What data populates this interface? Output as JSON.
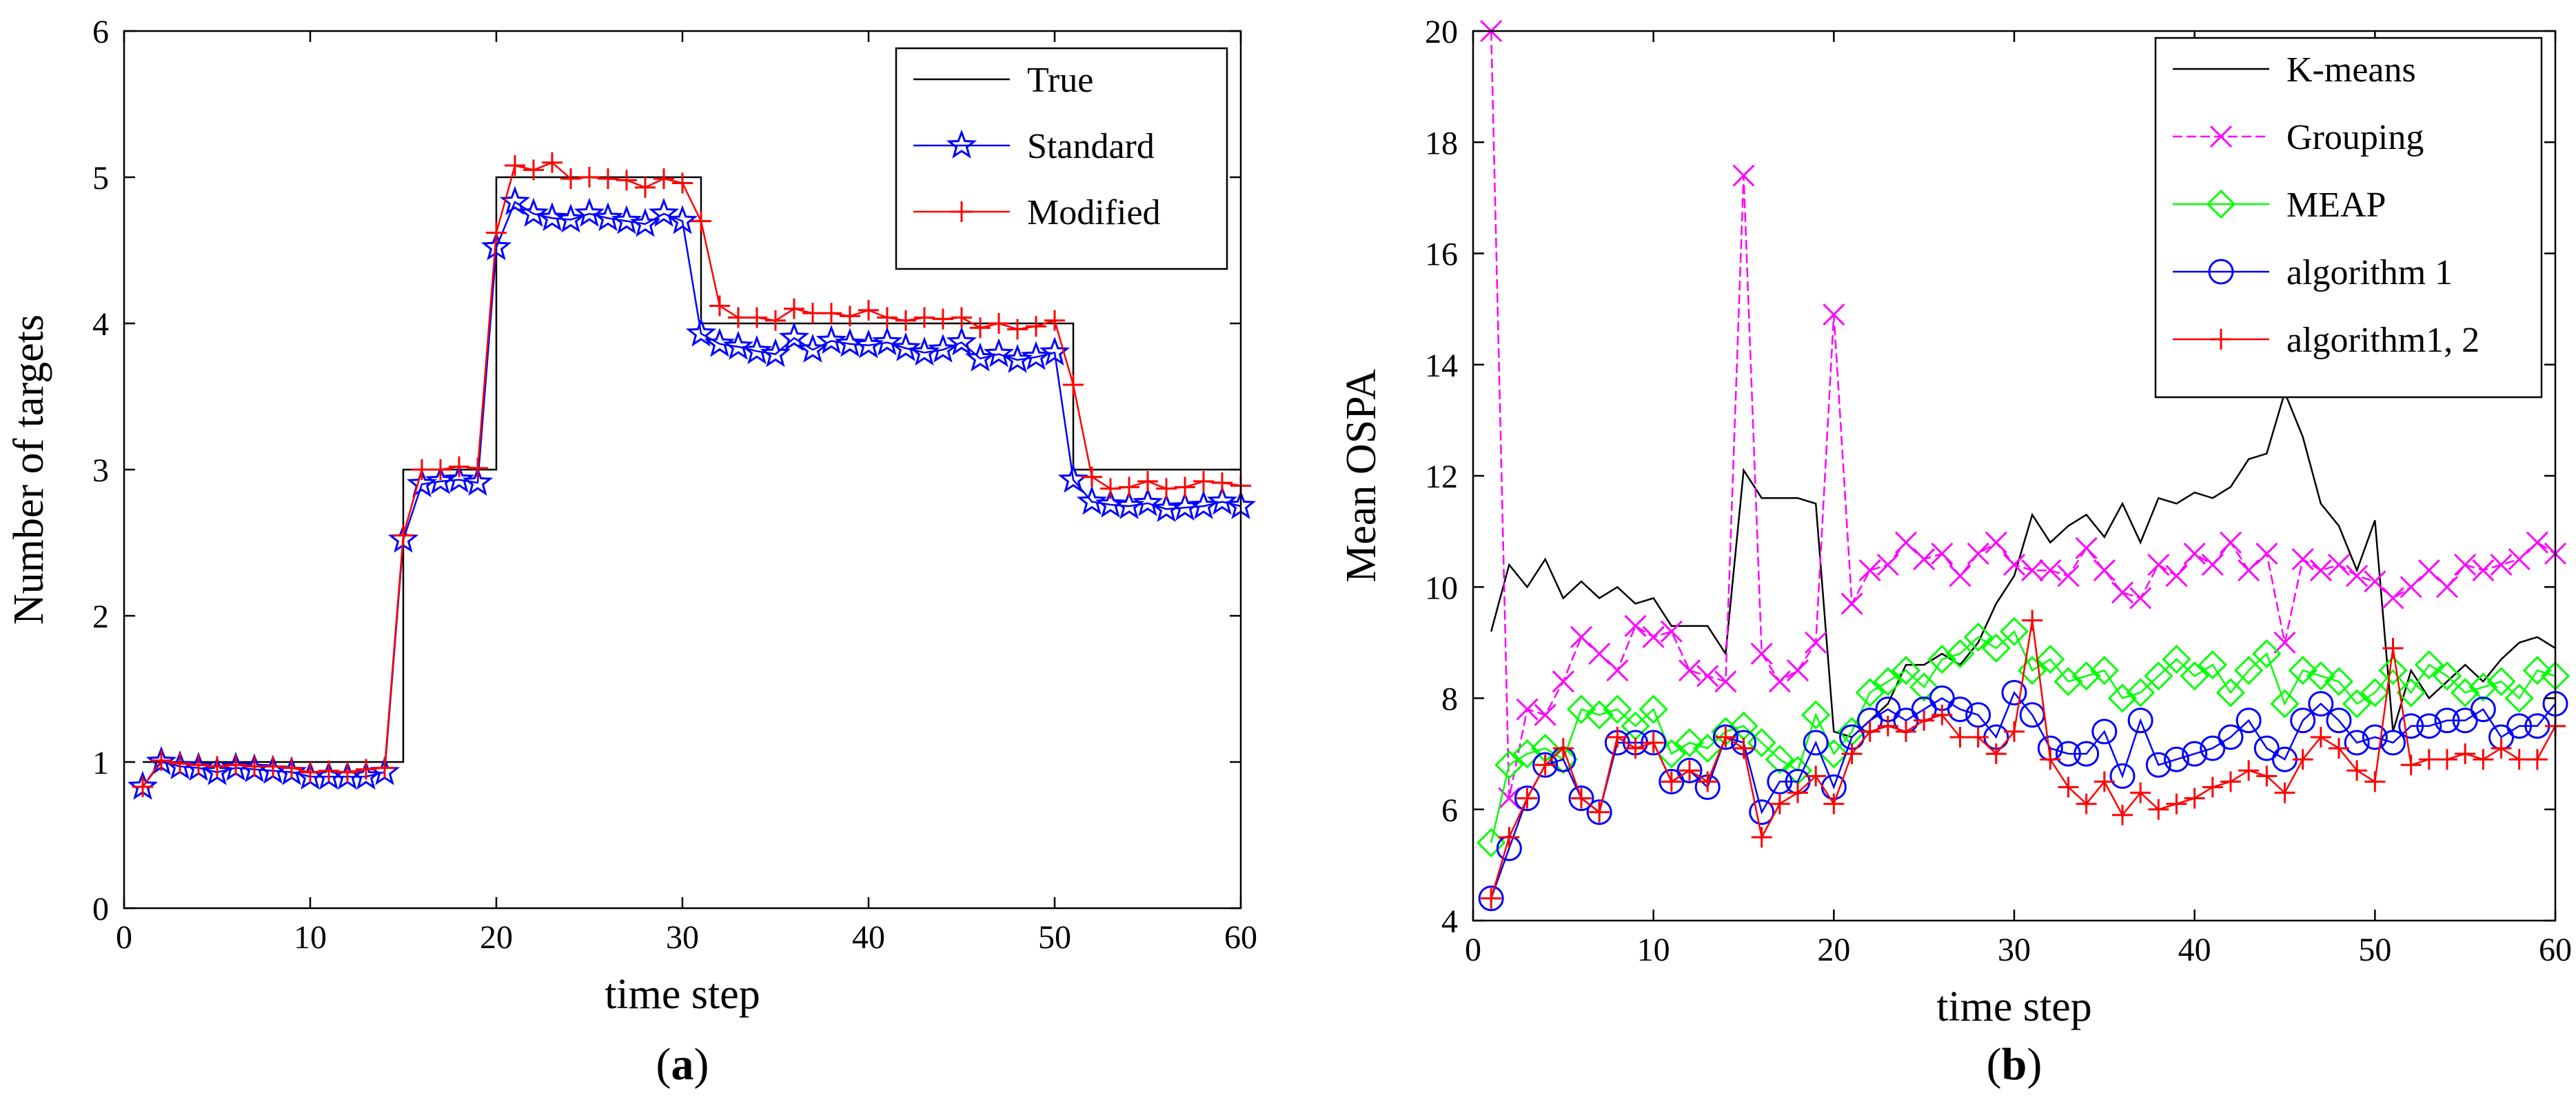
{
  "chart_data": [
    {
      "type": "line",
      "panel_label": "a",
      "caption_open": "(",
      "caption_close": ")",
      "xlabel": "time step",
      "ylabel": "Number of targets",
      "xlim": [
        0,
        60
      ],
      "ylim": [
        0,
        6
      ],
      "xticks": [
        0,
        10,
        20,
        30,
        40,
        50,
        60
      ],
      "yticks": [
        0,
        1,
        2,
        3,
        4,
        5,
        6
      ],
      "legend_position": "top-right",
      "x": [
        1,
        2,
        3,
        4,
        5,
        6,
        7,
        8,
        9,
        10,
        11,
        12,
        13,
        14,
        15,
        16,
        17,
        18,
        19,
        20,
        21,
        22,
        23,
        24,
        25,
        26,
        27,
        28,
        29,
        30,
        31,
        32,
        33,
        34,
        35,
        36,
        37,
        38,
        39,
        40,
        41,
        42,
        43,
        44,
        45,
        46,
        47,
        48,
        49,
        50,
        51,
        52,
        53,
        54,
        55,
        56,
        57,
        58,
        59,
        60
      ],
      "series": [
        {
          "name": "True",
          "color": "#000000",
          "marker": "none",
          "style": "step",
          "values": [
            1,
            1,
            1,
            1,
            1,
            1,
            1,
            1,
            1,
            1,
            1,
            1,
            1,
            1,
            3,
            3,
            3,
            3,
            3,
            5,
            5,
            5,
            5,
            5,
            5,
            5,
            5,
            5,
            5,
            5,
            4,
            4,
            4,
            4,
            4,
            4,
            4,
            4,
            4,
            4,
            4,
            4,
            4,
            4,
            4,
            4,
            4,
            4,
            4,
            4,
            3,
            3,
            3,
            3,
            3,
            3,
            3,
            3,
            3,
            3
          ]
        },
        {
          "name": "Standard",
          "color": "#0000ff",
          "marker": "star",
          "style": "line",
          "values": [
            0.83,
            1.0,
            0.97,
            0.96,
            0.93,
            0.96,
            0.95,
            0.94,
            0.93,
            0.9,
            0.9,
            0.9,
            0.9,
            0.93,
            2.52,
            2.9,
            2.92,
            2.93,
            2.91,
            4.52,
            4.83,
            4.75,
            4.72,
            4.71,
            4.75,
            4.72,
            4.7,
            4.68,
            4.75,
            4.7,
            3.93,
            3.86,
            3.84,
            3.81,
            3.79,
            3.9,
            3.82,
            3.88,
            3.86,
            3.85,
            3.87,
            3.83,
            3.8,
            3.82,
            3.87,
            3.76,
            3.79,
            3.75,
            3.77,
            3.8,
            2.93,
            2.78,
            2.76,
            2.75,
            2.77,
            2.73,
            2.74,
            2.75,
            2.78,
            2.75
          ]
        },
        {
          "name": "Modified",
          "color": "#ff0000",
          "marker": "plus",
          "style": "line",
          "values": [
            0.83,
            1.01,
            0.99,
            0.98,
            0.97,
            0.98,
            0.97,
            0.97,
            0.96,
            0.93,
            0.94,
            0.93,
            0.95,
            0.96,
            2.55,
            3.0,
            3.0,
            3.02,
            3.01,
            4.62,
            5.08,
            5.05,
            5.1,
            4.99,
            5.0,
            4.99,
            4.98,
            4.93,
            4.99,
            4.96,
            4.7,
            4.12,
            4.04,
            4.04,
            4.02,
            4.1,
            4.07,
            4.07,
            4.05,
            4.09,
            4.04,
            4.02,
            4.04,
            4.03,
            4.04,
            3.97,
            4.0,
            3.96,
            3.98,
            4.02,
            3.58,
            2.95,
            2.87,
            2.88,
            2.92,
            2.87,
            2.88,
            2.92,
            2.91,
            2.89
          ]
        }
      ]
    },
    {
      "type": "line",
      "panel_label": "b",
      "caption_open": "(",
      "caption_close": ")",
      "xlabel": "time step",
      "ylabel": "Mean OSPA",
      "xlim": [
        0,
        60
      ],
      "ylim": [
        4,
        20
      ],
      "xticks": [
        0,
        10,
        20,
        30,
        40,
        50,
        60
      ],
      "yticks": [
        4,
        6,
        8,
        10,
        12,
        14,
        16,
        18,
        20
      ],
      "legend_position": "top-right",
      "x": [
        1,
        2,
        3,
        4,
        5,
        6,
        7,
        8,
        9,
        10,
        11,
        12,
        13,
        14,
        15,
        16,
        17,
        18,
        19,
        20,
        21,
        22,
        23,
        24,
        25,
        26,
        27,
        28,
        29,
        30,
        31,
        32,
        33,
        34,
        35,
        36,
        37,
        38,
        39,
        40,
        41,
        42,
        43,
        44,
        45,
        46,
        47,
        48,
        49,
        50,
        51,
        52,
        53,
        54,
        55,
        56,
        57,
        58,
        59,
        60
      ],
      "series": [
        {
          "name": "K-means",
          "color": "#000000",
          "marker": "none",
          "style": "line",
          "values": [
            9.2,
            10.4,
            10.0,
            10.5,
            9.8,
            10.1,
            9.8,
            10.0,
            9.7,
            9.8,
            9.3,
            9.3,
            9.3,
            8.8,
            12.1,
            11.6,
            11.6,
            11.6,
            11.5,
            7.4,
            7.3,
            7.6,
            7.9,
            8.6,
            8.6,
            8.8,
            8.6,
            9.0,
            9.7,
            10.2,
            11.3,
            10.8,
            11.1,
            11.3,
            10.9,
            11.5,
            10.8,
            11.6,
            11.5,
            11.7,
            11.6,
            11.8,
            12.3,
            12.4,
            13.5,
            12.7,
            11.5,
            11.1,
            10.3,
            11.2,
            7.4,
            8.5,
            8.0,
            8.3,
            8.6,
            8.3,
            8.7,
            9.0,
            9.1,
            8.9
          ]
        },
        {
          "name": "Grouping",
          "color": "#ff00ff",
          "marker": "x",
          "style": "line",
          "values": [
            20.0,
            6.2,
            7.8,
            7.7,
            8.3,
            9.1,
            8.8,
            8.5,
            9.3,
            9.1,
            9.2,
            8.5,
            8.4,
            8.3,
            17.4,
            8.8,
            8.3,
            8.5,
            9.0,
            14.9,
            9.7,
            10.3,
            10.4,
            10.8,
            10.5,
            10.6,
            10.2,
            10.6,
            10.8,
            10.4,
            10.3,
            10.3,
            10.2,
            10.7,
            10.3,
            9.9,
            9.8,
            10.4,
            10.2,
            10.6,
            10.4,
            10.8,
            10.3,
            10.6,
            9.0,
            10.5,
            10.3,
            10.4,
            10.2,
            10.1,
            9.8,
            10.0,
            10.3,
            10.0,
            10.4,
            10.3,
            10.4,
            10.5,
            10.8,
            10.6
          ]
        },
        {
          "name": "MEAP",
          "color": "#00ff00",
          "marker": "diamond",
          "style": "line",
          "values": [
            5.4,
            6.8,
            7.0,
            7.1,
            6.9,
            7.8,
            7.7,
            7.8,
            7.5,
            7.8,
            7.0,
            7.2,
            7.1,
            7.4,
            7.5,
            7.2,
            6.9,
            6.7,
            7.7,
            7.0,
            7.4,
            8.1,
            8.3,
            8.5,
            8.2,
            8.7,
            8.8,
            9.1,
            8.9,
            9.2,
            8.5,
            8.7,
            8.3,
            8.4,
            8.5,
            8.0,
            8.1,
            8.4,
            8.7,
            8.4,
            8.6,
            8.1,
            8.5,
            8.8,
            7.9,
            8.5,
            8.4,
            8.3,
            7.9,
            8.1,
            8.5,
            8.1,
            8.6,
            8.4,
            8.1,
            8.2,
            8.3,
            8.0,
            8.5,
            8.4
          ]
        },
        {
          "name": "algorithm 1",
          "color": "#0000ff",
          "marker": "circle",
          "style": "line",
          "values": [
            4.4,
            5.3,
            6.2,
            6.8,
            6.9,
            6.2,
            5.95,
            7.2,
            7.2,
            7.2,
            6.5,
            6.7,
            6.4,
            7.3,
            7.2,
            5.95,
            6.5,
            6.5,
            7.2,
            6.4,
            7.3,
            7.6,
            7.8,
            7.6,
            7.8,
            8.0,
            7.8,
            7.7,
            7.3,
            8.1,
            7.7,
            7.1,
            7.0,
            7.0,
            7.4,
            6.6,
            7.6,
            6.8,
            6.9,
            7.0,
            7.1,
            7.3,
            7.6,
            7.1,
            6.9,
            7.6,
            7.9,
            7.6,
            7.2,
            7.3,
            7.2,
            7.5,
            7.5,
            7.6,
            7.6,
            7.8,
            7.3,
            7.5,
            7.5,
            7.9
          ]
        },
        {
          "name": "algorithm1, 2",
          "color": "#ff0000",
          "marker": "plus",
          "style": "line",
          "values": [
            4.4,
            5.5,
            6.2,
            6.8,
            7.1,
            6.2,
            5.95,
            7.3,
            7.1,
            7.2,
            6.5,
            6.7,
            6.5,
            7.3,
            7.1,
            5.5,
            6.1,
            6.3,
            6.6,
            6.1,
            7.0,
            7.4,
            7.5,
            7.4,
            7.6,
            7.7,
            7.3,
            7.3,
            7.0,
            7.4,
            9.4,
            6.9,
            6.4,
            6.1,
            6.5,
            5.9,
            6.3,
            6.0,
            6.1,
            6.2,
            6.4,
            6.5,
            6.7,
            6.6,
            6.3,
            6.9,
            7.3,
            7.1,
            6.7,
            6.5,
            8.9,
            6.8,
            6.9,
            6.9,
            7.0,
            6.9,
            7.1,
            6.9,
            6.9,
            7.5
          ]
        }
      ]
    }
  ]
}
